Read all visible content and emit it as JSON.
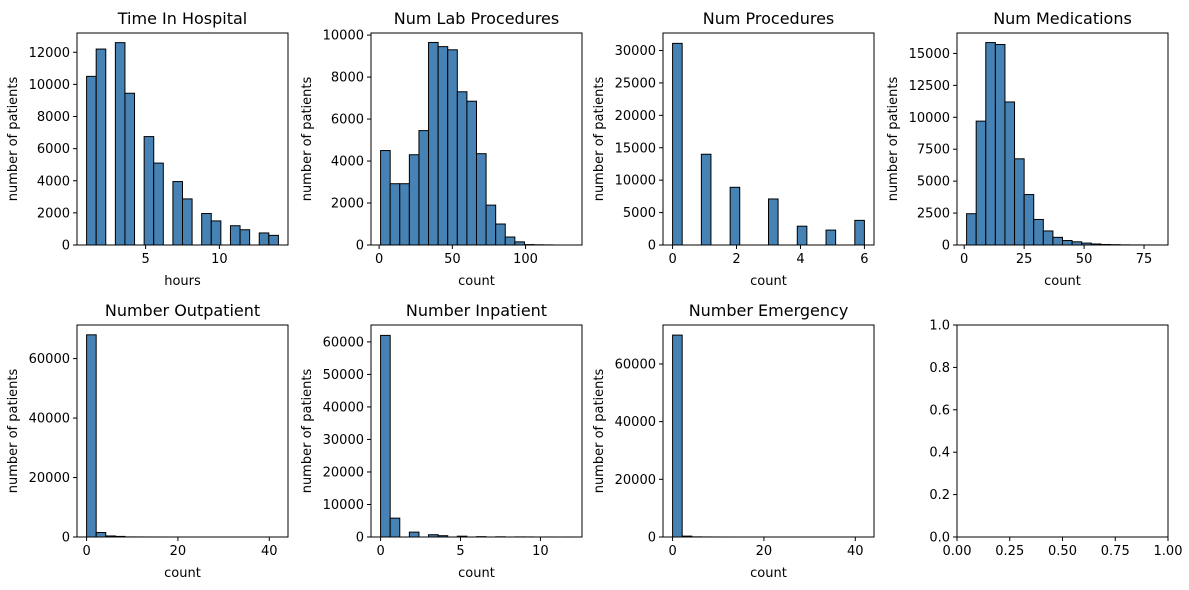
{
  "colors": {
    "bar": "#4682b4",
    "edge": "#000000",
    "background": "#ffffff"
  },
  "chart_data": [
    {
      "type": "bar",
      "title": "Time In Hospital",
      "xlabel": "hours",
      "ylabel": "number of patients",
      "xlim": [
        0.35,
        14.65
      ],
      "ylim": [
        0,
        13200
      ],
      "xticks": [
        5,
        10
      ],
      "xtick_labels": [
        "5",
        "10"
      ],
      "yticks": [
        0,
        2000,
        4000,
        6000,
        8000,
        10000,
        12000
      ],
      "ytick_labels": [
        "0",
        "2000",
        "4000",
        "6000",
        "8000",
        "10000",
        "12000"
      ],
      "bin_edges": [
        1,
        1.65,
        2.3,
        2.95,
        3.6,
        4.25,
        4.9,
        5.55,
        6.2,
        6.85,
        7.5,
        8.15,
        8.8,
        9.45,
        10.1,
        10.75,
        11.4,
        12.05,
        12.7,
        13.35,
        14
      ],
      "values": [
        10500,
        12200,
        0,
        12600,
        9450,
        0,
        6750,
        5100,
        0,
        3950,
        2870,
        0,
        1960,
        1500,
        0,
        1200,
        950,
        0,
        750,
        600
      ]
    },
    {
      "type": "bar",
      "title": "Num Lab Procedures",
      "xlabel": "count",
      "ylabel": "number of patients",
      "xlim": [
        -5.55,
        138.55
      ],
      "ylim": [
        0,
        10100
      ],
      "xticks": [
        0,
        50,
        100
      ],
      "xtick_labels": [
        "0",
        "50",
        "100"
      ],
      "yticks": [
        0,
        2000,
        4000,
        6000,
        8000,
        10000
      ],
      "ytick_labels": [
        "0",
        "2000",
        "4000",
        "6000",
        "8000",
        "10000"
      ],
      "bin_edges": [
        1,
        7.55,
        14.1,
        20.65,
        27.2,
        33.75,
        40.3,
        46.85,
        53.4,
        59.95,
        66.5,
        73.05,
        79.6,
        86.15,
        92.7,
        99.25,
        105.8,
        112.35,
        118.9,
        125.45,
        132
      ],
      "values": [
        4500,
        2920,
        2920,
        4300,
        5450,
        9650,
        9450,
        9300,
        7300,
        6850,
        4350,
        1900,
        1000,
        380,
        150,
        20,
        10,
        5,
        0,
        0
      ]
    },
    {
      "type": "bar",
      "title": "Num Procedures",
      "xlabel": "count",
      "ylabel": "number of patients",
      "xlim": [
        -0.3,
        6.3
      ],
      "ylim": [
        0,
        32700
      ],
      "xticks": [
        0,
        2,
        4,
        6
      ],
      "xtick_labels": [
        "0",
        "2",
        "4",
        "6"
      ],
      "yticks": [
        0,
        5000,
        10000,
        15000,
        20000,
        25000,
        30000
      ],
      "ytick_labels": [
        "0",
        "5000",
        "10000",
        "15000",
        "20000",
        "25000",
        "30000"
      ],
      "bin_edges": [
        0,
        0.3,
        0.6,
        0.9,
        1.2,
        1.5,
        1.8,
        2.1,
        2.4,
        2.7,
        3,
        3.3,
        3.6,
        3.9,
        4.2,
        4.5,
        4.8,
        5.1,
        5.4,
        5.7,
        6
      ],
      "values": [
        31100,
        0,
        0,
        14000,
        0,
        0,
        8900,
        0,
        0,
        0,
        7100,
        0,
        0,
        2900,
        0,
        0,
        2300,
        0,
        0,
        3800
      ]
    },
    {
      "type": "bar",
      "title": "Num Medications",
      "xlabel": "count",
      "ylabel": "number of patients",
      "xlim": [
        -3,
        85
      ],
      "ylim": [
        0,
        16600
      ],
      "xticks": [
        0,
        25,
        50,
        75
      ],
      "xtick_labels": [
        "0",
        "25",
        "50",
        "75"
      ],
      "yticks": [
        0,
        2500,
        5000,
        7500,
        10000,
        12500,
        15000
      ],
      "ytick_labels": [
        "0",
        "2500",
        "5000",
        "7500",
        "10000",
        "12500",
        "15000"
      ],
      "bin_edges": [
        1,
        5,
        9,
        13,
        17,
        21,
        25,
        29,
        33,
        37,
        41,
        45,
        49,
        53,
        57,
        61,
        65,
        69,
        73,
        77,
        81
      ],
      "values": [
        2450,
        9700,
        15850,
        15700,
        11200,
        6750,
        3950,
        2000,
        1100,
        600,
        350,
        250,
        150,
        80,
        40,
        25,
        10,
        5,
        3,
        2
      ]
    },
    {
      "type": "bar",
      "title": "Number Outpatient",
      "xlabel": "count",
      "ylabel": "number of patients",
      "xlim": [
        -2.1,
        44.1
      ],
      "ylim": [
        0,
        71300
      ],
      "xticks": [
        0,
        20,
        40
      ],
      "xtick_labels": [
        "0",
        "20",
        "40"
      ],
      "yticks": [
        0,
        20000,
        40000,
        60000
      ],
      "ytick_labels": [
        "0",
        "20000",
        "40000",
        "60000"
      ],
      "bin_edges": [
        0,
        2.1,
        4.2,
        6.3,
        8.4,
        10.5,
        12.6,
        14.7,
        16.8,
        18.9,
        21,
        23.1,
        25.2,
        27.3,
        29.4,
        31.5,
        33.6,
        35.7,
        37.8,
        39.9,
        42
      ],
      "values": [
        68000,
        1500,
        350,
        200,
        30,
        20,
        10,
        5,
        0,
        0,
        0,
        0,
        0,
        0,
        0,
        0,
        0,
        0,
        0,
        0
      ]
    },
    {
      "type": "bar",
      "title": "Number Inpatient",
      "xlabel": "count",
      "ylabel": "number of patients",
      "xlim": [
        -0.6,
        12.6
      ],
      "ylim": [
        0,
        65200
      ],
      "xticks": [
        0,
        5,
        10
      ],
      "xtick_labels": [
        "0",
        "5",
        "10"
      ],
      "yticks": [
        0,
        10000,
        20000,
        30000,
        40000,
        50000,
        60000
      ],
      "ytick_labels": [
        "0",
        "10000",
        "20000",
        "30000",
        "40000",
        "50000",
        "60000"
      ],
      "bin_edges": [
        0,
        0.6,
        1.2,
        1.8,
        2.4,
        3,
        3.6,
        4.2,
        4.8,
        5.4,
        6,
        6.6,
        7.2,
        7.8,
        8.4,
        9,
        9.6,
        10.2,
        10.8,
        11.4,
        12
      ],
      "values": [
        62000,
        5800,
        0,
        1500,
        0,
        700,
        400,
        0,
        250,
        0,
        100,
        0,
        60,
        0,
        30,
        20,
        0,
        10,
        0,
        5
      ]
    },
    {
      "type": "bar",
      "title": "Number Emergency",
      "xlabel": "count",
      "ylabel": "number of patients",
      "xlim": [
        -2.1,
        44.1
      ],
      "ylim": [
        0,
        73500
      ],
      "xticks": [
        0,
        20,
        40
      ],
      "xtick_labels": [
        "0",
        "20",
        "40"
      ],
      "yticks": [
        0,
        20000,
        40000,
        60000
      ],
      "ytick_labels": [
        "0",
        "20000",
        "40000",
        "60000"
      ],
      "bin_edges": [
        0,
        2.1,
        4.2,
        6.3,
        8.4,
        10.5,
        12.6,
        14.7,
        16.8,
        18.9,
        21,
        23.1,
        25.2,
        27.3,
        29.4,
        31.5,
        33.6,
        35.7,
        37.8,
        39.9,
        42
      ],
      "values": [
        70000,
        300,
        50,
        20,
        10,
        5,
        0,
        0,
        0,
        0,
        0,
        0,
        0,
        0,
        0,
        0,
        0,
        0,
        0,
        0
      ]
    },
    {
      "type": "bar",
      "title": "",
      "xlabel": "",
      "ylabel": "",
      "xlim": [
        0,
        1
      ],
      "ylim": [
        0,
        1
      ],
      "xticks": [
        0,
        0.25,
        0.5,
        0.75,
        1
      ],
      "xtick_labels": [
        "0.00",
        "0.25",
        "0.50",
        "0.75",
        "1.00"
      ],
      "yticks": [
        0,
        0.2,
        0.4,
        0.6,
        0.8,
        1
      ],
      "ytick_labels": [
        "0.0",
        "0.2",
        "0.4",
        "0.6",
        "0.8",
        "1.0"
      ],
      "bin_edges": [],
      "values": []
    }
  ]
}
